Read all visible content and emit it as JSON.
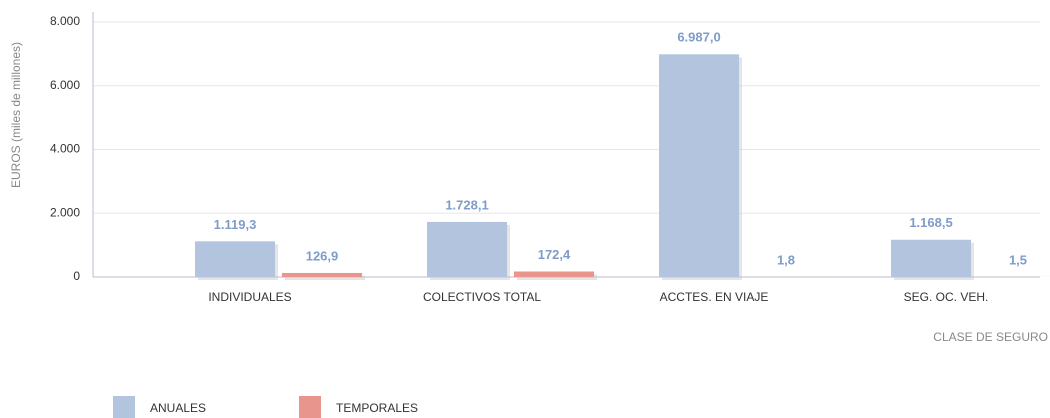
{
  "chart_data": {
    "type": "bar",
    "ylabel": "EUROS (miles de millones)",
    "xlabel": "CLASE DE SEGURO",
    "categories": [
      "INDIVIDUALES",
      "COLECTIVOS TOTAL",
      "ACCTES. EN VIAJE",
      "SEG. OC. VEH."
    ],
    "series": [
      {
        "name": "ANUALES",
        "color": "#b3c5de",
        "values": [
          1119.3,
          1728.1,
          6987.0,
          1168.5
        ],
        "value_labels": [
          "1.119,3",
          "1.728,1",
          "6.987,0",
          "1.168,5"
        ]
      },
      {
        "name": "TEMPORALES",
        "color": "#e8958d",
        "values": [
          126.9,
          172.4,
          1.8,
          1.5
        ],
        "value_labels": [
          "126,9",
          "172,4",
          "1,8",
          "1,5"
        ]
      }
    ],
    "ylim": [
      0,
      8000
    ],
    "yticks": [
      {
        "value": 0,
        "label": "0"
      },
      {
        "value": 2000,
        "label": "2.000"
      },
      {
        "value": 4000,
        "label": "4.000"
      },
      {
        "value": 6000,
        "label": "6.000"
      },
      {
        "value": 8000,
        "label": "8.000"
      }
    ],
    "grid": true
  }
}
